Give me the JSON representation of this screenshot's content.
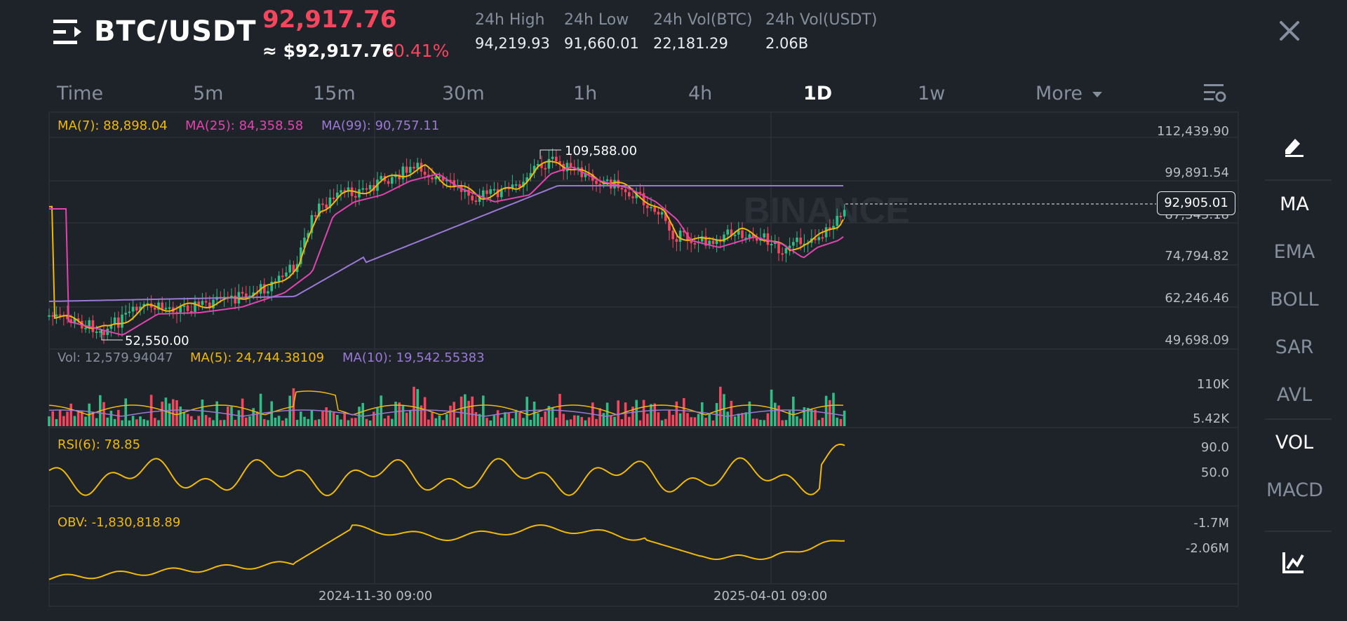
{
  "header": {
    "pair": "BTC/USDT",
    "last_price": "92,917.76",
    "usd_price": "≈ $92,917.76",
    "change_pct": "-0.41%",
    "stats": [
      {
        "label": "24h High",
        "value": "94,219.93"
      },
      {
        "label": "24h Low",
        "value": "91,660.01"
      },
      {
        "label": "24h Vol(BTC)",
        "value": "22,181.29"
      },
      {
        "label": "24h Vol(USDT)",
        "value": "2.06B"
      }
    ]
  },
  "tabs": [
    "Time",
    "5m",
    "15m",
    "30m",
    "1h",
    "4h",
    "1D",
    "1w",
    "More"
  ],
  "active_tab": "1D",
  "indicators": {
    "ma7": "MA(7): 88,898.04",
    "ma25": "MA(25): 84,358.58",
    "ma99": "MA(99): 90,757.11",
    "vol": "Vol: 12,579.94047",
    "vol_ma5": "MA(5): 24,744.38109",
    "vol_ma10": "MA(10): 19,542.55383",
    "rsi": "RSI(6): 78.85",
    "obv": "OBV: -1,830,818.89"
  },
  "price_axis": [
    "112,439.90",
    "99,891.54",
    "87,343.18",
    "74,794.82",
    "62,246.46",
    "49,698.09"
  ],
  "current_price_tag": "92,905.01",
  "high_marker": "109,588.00",
  "low_marker": "52,550.00",
  "volume_axis": [
    "110K",
    "5.42K"
  ],
  "rsi_axis": [
    "90.0",
    "50.0"
  ],
  "obv_axis": [
    "-1.7M",
    "-2.06M"
  ],
  "time_axis": [
    "2024-11-30 09:00",
    "2025-04-01 09:00"
  ],
  "side_panel": [
    "MA",
    "EMA",
    "BOLL",
    "SAR",
    "AVL",
    "VOL",
    "MACD"
  ],
  "side_active": [
    "MA",
    "VOL"
  ],
  "watermark": "BINANCE",
  "colors": {
    "background": "#1e2329",
    "up": "#2ebd85",
    "down": "#f6465d",
    "ma7": "#f0b90b",
    "ma25": "#e045b0",
    "ma99": "#9b79d6",
    "rsi": "#f0b90b",
    "obv": "#f0b90b"
  },
  "icons": [
    "menu-icon",
    "close-icon",
    "settings-icon",
    "draw-icon",
    "chart-indicator-icon",
    "caret-down-icon"
  ]
}
